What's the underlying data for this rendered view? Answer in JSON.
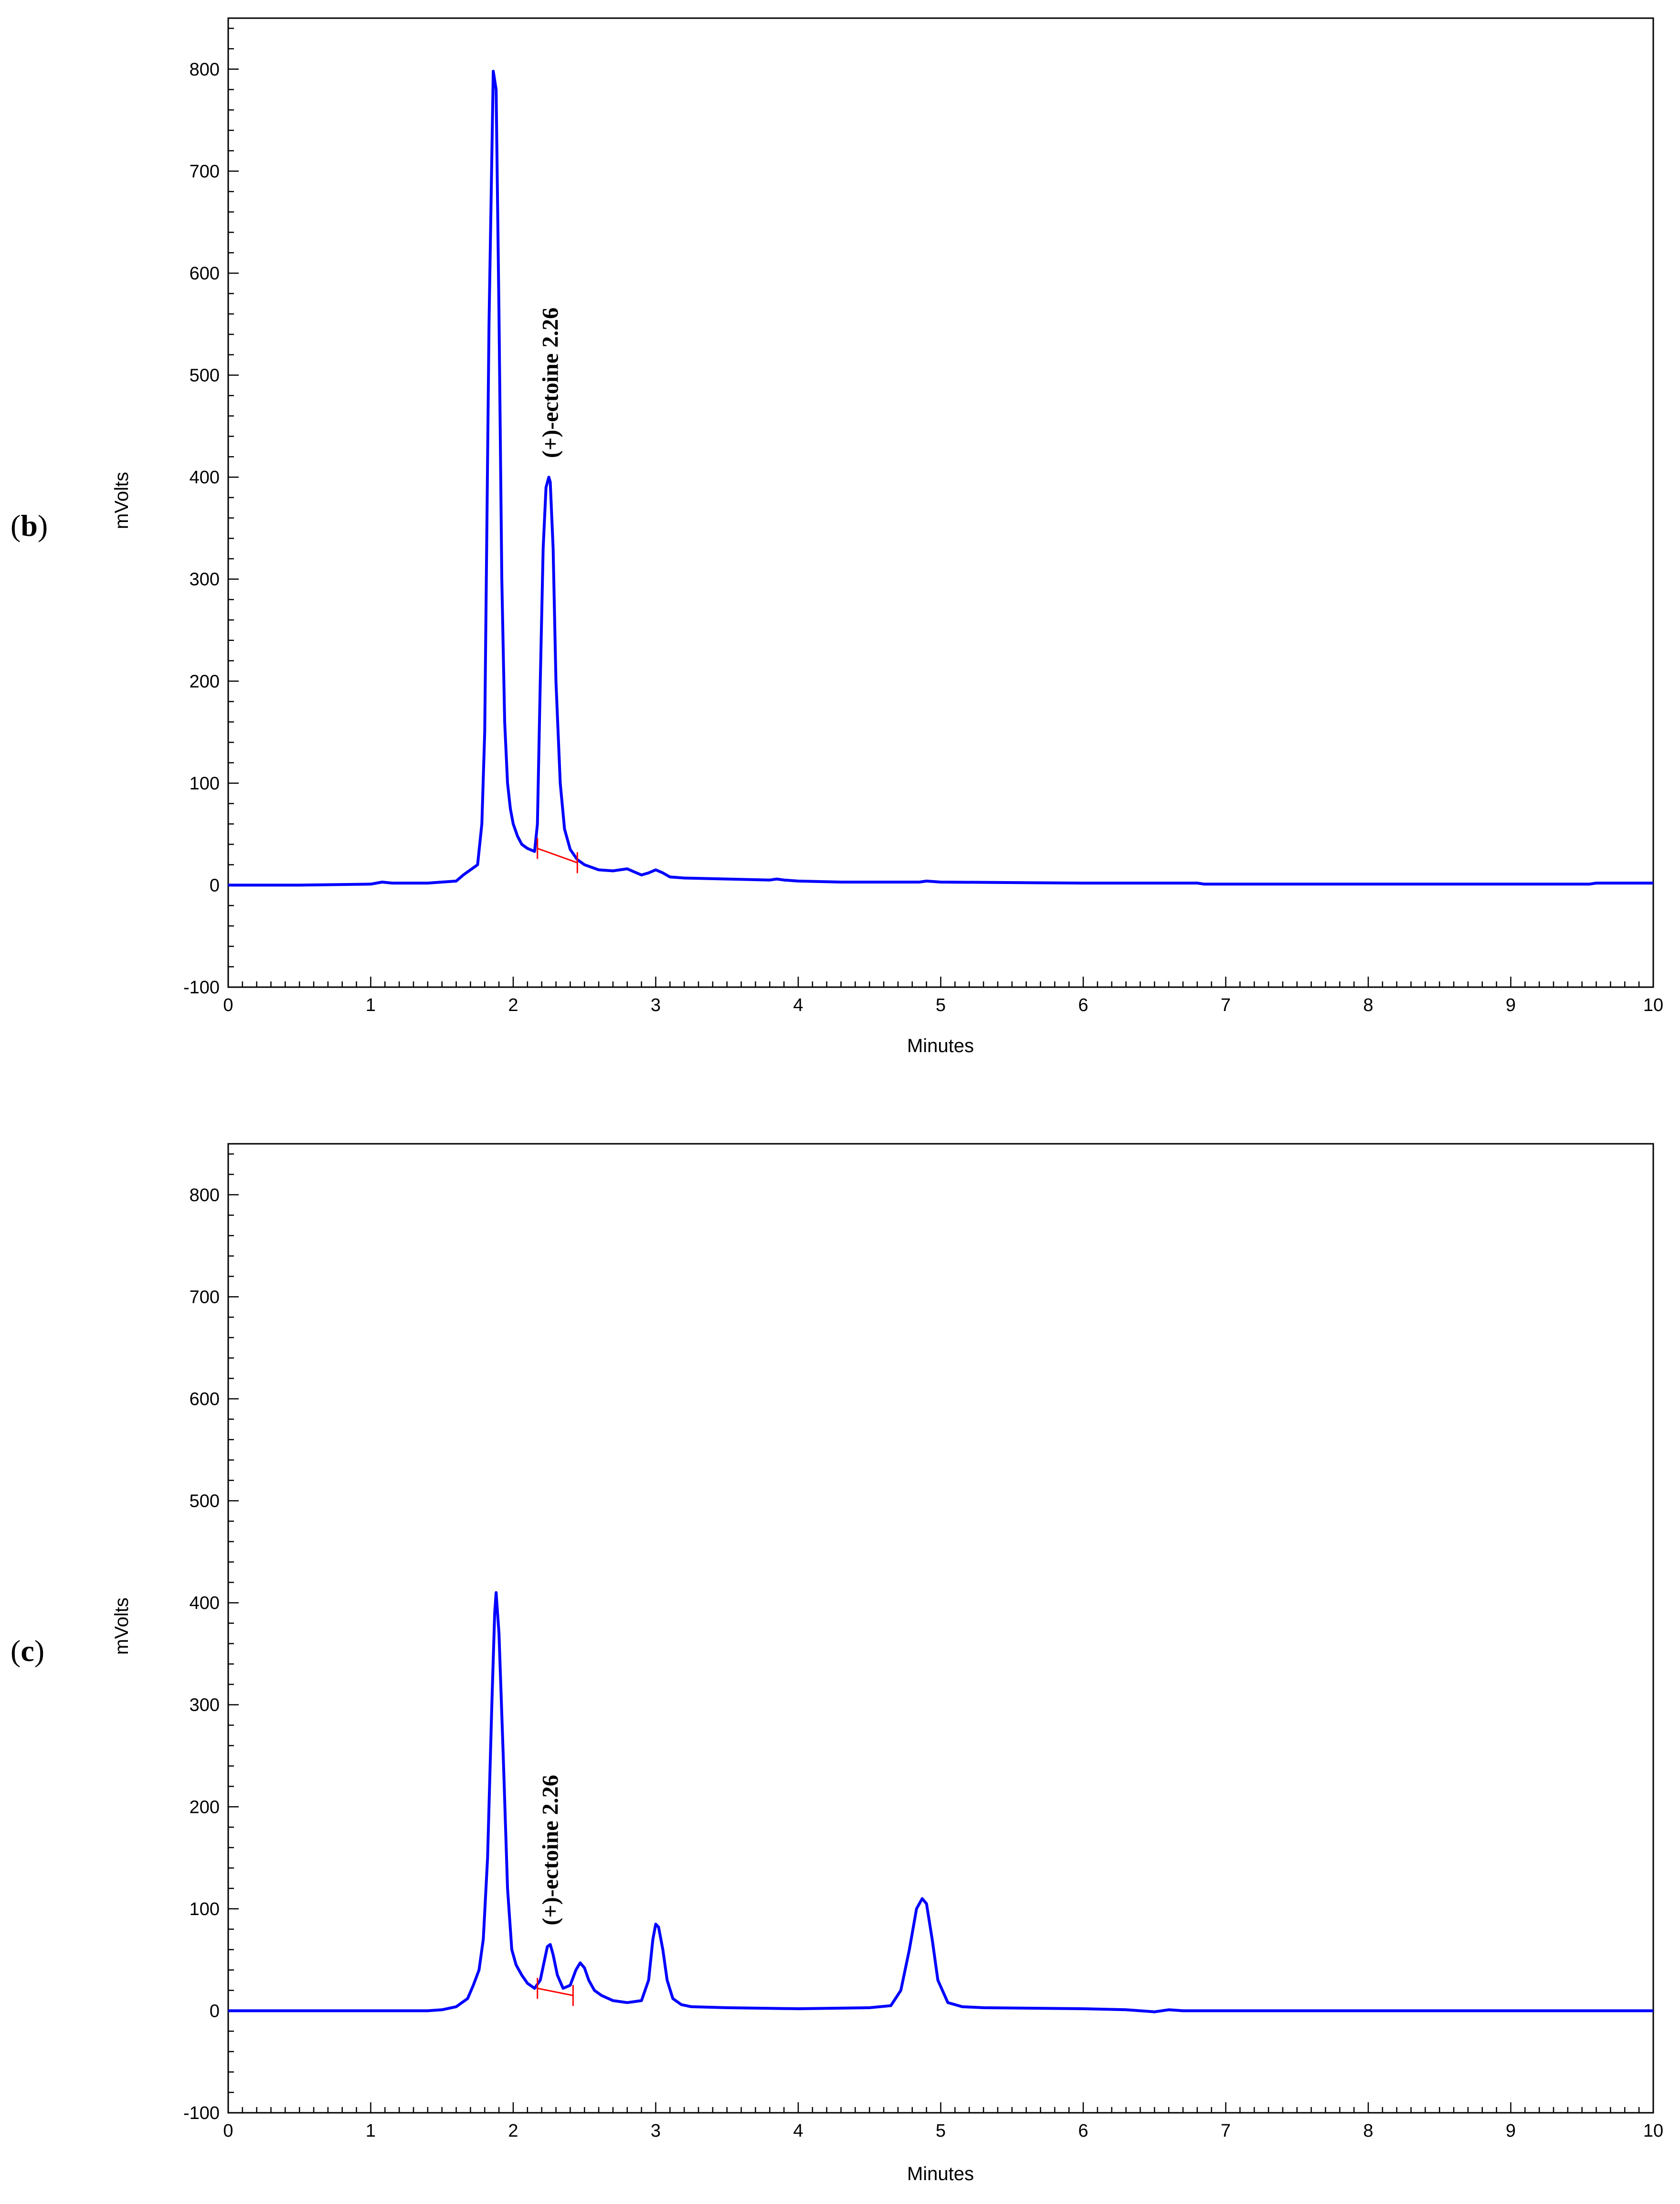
{
  "chart_data": [
    {
      "type": "line",
      "panel": "b",
      "xlabel": "Minutes",
      "ylabel": "mVolts",
      "xlim": [
        0,
        10
      ],
      "ylim": [
        -100,
        850
      ],
      "x_ticks": [
        0,
        1,
        2,
        3,
        4,
        5,
        6,
        7,
        8,
        9,
        10
      ],
      "y_ticks": [
        -100,
        0,
        100,
        200,
        300,
        400,
        500,
        600,
        700,
        800
      ],
      "series_color": "#0000ff",
      "baseline_color": "#ff0000",
      "series": [
        {
          "x": [
            0,
            0.5,
            1.0,
            1.08,
            1.15,
            1.4,
            1.6,
            1.65,
            1.7,
            1.75,
            1.78,
            1.8,
            1.83,
            1.86,
            1.88,
            1.9,
            1.92,
            1.94,
            1.96,
            1.98,
            2.0,
            2.03,
            2.06,
            2.1,
            2.15,
            2.17,
            2.19,
            2.21,
            2.23,
            2.25,
            2.26,
            2.28,
            2.3,
            2.33,
            2.36,
            2.4,
            2.45,
            2.5,
            2.6,
            2.7,
            2.8,
            2.85,
            2.9,
            2.95,
            3.0,
            3.05,
            3.1,
            3.2,
            3.5,
            3.8,
            3.85,
            3.9,
            4.0,
            4.3,
            4.5,
            4.85,
            4.9,
            5.0,
            6.0,
            6.8,
            6.85,
            7.0,
            8.0,
            9.0,
            9.55,
            9.6,
            10.0
          ],
          "y": [
            0,
            0,
            1,
            3,
            2,
            2,
            4,
            10,
            15,
            20,
            60,
            150,
            550,
            798,
            780,
            560,
            300,
            160,
            100,
            75,
            60,
            48,
            40,
            36,
            33,
            60,
            200,
            330,
            390,
            400,
            395,
            330,
            200,
            100,
            55,
            35,
            25,
            20,
            15,
            14,
            16,
            13,
            10,
            12,
            15,
            12,
            8,
            7,
            6,
            5,
            6,
            5,
            4,
            3,
            3,
            3,
            4,
            3,
            2,
            2,
            1,
            1,
            1,
            1,
            1,
            2,
            2
          ]
        }
      ],
      "integration_baseline": {
        "x": [
          2.17,
          2.45
        ],
        "y": [
          36,
          22
        ]
      },
      "annotations": [
        {
          "text": "(+)-ectoine 2.26",
          "x": 2.26,
          "y": 400
        }
      ]
    },
    {
      "type": "line",
      "panel": "c",
      "xlabel": "Minutes",
      "ylabel": "mVolts",
      "xlim": [
        0,
        10
      ],
      "ylim": [
        -100,
        850
      ],
      "x_ticks": [
        0,
        1,
        2,
        3,
        4,
        5,
        6,
        7,
        8,
        9,
        10
      ],
      "y_ticks": [
        -100,
        0,
        100,
        200,
        300,
        400,
        500,
        600,
        700,
        800
      ],
      "series_color": "#0000ff",
      "baseline_color": "#ff0000",
      "series": [
        {
          "x": [
            0,
            1.0,
            1.4,
            1.5,
            1.6,
            1.68,
            1.72,
            1.76,
            1.79,
            1.82,
            1.85,
            1.87,
            1.88,
            1.9,
            1.93,
            1.96,
            1.99,
            2.02,
            2.06,
            2.1,
            2.15,
            2.19,
            2.22,
            2.24,
            2.26,
            2.28,
            2.31,
            2.35,
            2.4,
            2.44,
            2.47,
            2.5,
            2.53,
            2.57,
            2.62,
            2.7,
            2.8,
            2.9,
            2.95,
            2.98,
            3.0,
            3.02,
            3.05,
            3.08,
            3.12,
            3.18,
            3.25,
            3.5,
            4.0,
            4.5,
            4.65,
            4.72,
            4.78,
            4.83,
            4.87,
            4.9,
            4.94,
            4.98,
            5.05,
            5.15,
            5.3,
            6.0,
            6.3,
            6.5,
            6.6,
            6.7,
            7.0,
            8.0,
            9.0,
            10.0
          ],
          "y": [
            0,
            0,
            0,
            1,
            4,
            12,
            25,
            40,
            70,
            150,
            300,
            390,
            410,
            370,
            250,
            120,
            60,
            45,
            35,
            27,
            22,
            30,
            50,
            63,
            65,
            55,
            35,
            22,
            25,
            40,
            47,
            42,
            30,
            20,
            15,
            10,
            8,
            10,
            30,
            70,
            85,
            82,
            60,
            30,
            12,
            6,
            4,
            3,
            2,
            3,
            5,
            20,
            60,
            100,
            110,
            105,
            70,
            30,
            8,
            4,
            3,
            2,
            1,
            -1,
            1,
            0,
            0,
            0,
            0,
            0
          ]
        }
      ],
      "integration_baseline": {
        "x": [
          2.17,
          2.42
        ],
        "y": [
          22,
          15
        ]
      },
      "annotations": [
        {
          "text": "(+)-ectoine 2.26",
          "x": 2.26,
          "y": 65
        }
      ]
    }
  ],
  "panels": [
    {
      "label_open": "(",
      "label_letter": "b",
      "label_close": ")",
      "xlabel": "Minutes",
      "ylabel": "mVolts",
      "peak_label": "(+)-ectoine 2.26"
    },
    {
      "label_open": "(",
      "label_letter": "c",
      "label_close": ")",
      "xlabel": "Minutes",
      "ylabel": "mVolts",
      "peak_label": "(+)-ectoine 2.26"
    }
  ]
}
